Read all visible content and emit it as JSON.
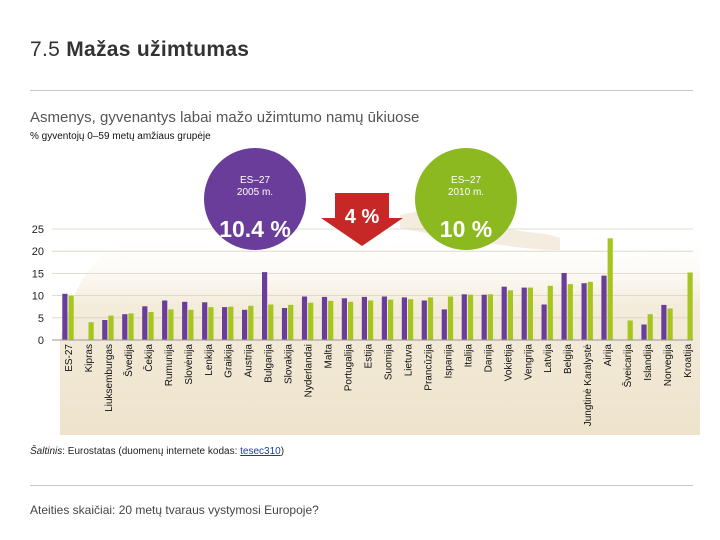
{
  "header": {
    "num": "7.5",
    "title": "Mažas užimtumas"
  },
  "subtitle": "Asmenys, gyvenantys labai mažo užimtumo namų ūkiuose",
  "unit": "% gyventojų 0–59 metų amžiaus grupėje",
  "callouts": {
    "left": {
      "label1": "ES–27",
      "label2": "2005 m.",
      "value": "10.4 %"
    },
    "mid": {
      "value": "4 %"
    },
    "right": {
      "label1": "ES–27",
      "label2": "2010 m.",
      "value": "10 %"
    }
  },
  "source": {
    "label": "Šaltinis",
    "text": ": Eurostatas (duomenų internete kodas: ",
    "code": "tesec310",
    "end": ")"
  },
  "footer": "Ateities skaičiai: 20 metų tvaraus vystymosi Europoje?",
  "colors": {
    "y2005": "#6a3d9a",
    "y2010": "#a6c51f",
    "circle_left": "#6a3d9a",
    "circle_right": "#8cb820",
    "arrow": "#c62828"
  },
  "chart_data": {
    "type": "bar",
    "ylim": [
      0,
      25
    ],
    "yticks": [
      0,
      5,
      10,
      15,
      20,
      25
    ],
    "categories": [
      "ES-27",
      "Kipras",
      "Liuksemburgas",
      "Švedija",
      "Čekija",
      "Rumunija",
      "Slovėnija",
      "Lenkija",
      "Graikija",
      "Austrija",
      "Bulgarija",
      "Slovakija",
      "Nyderlandai",
      "Malta",
      "Portugalija",
      "Estija",
      "Suomija",
      "Lietuva",
      "Prancūzija",
      "Ispanija",
      "Italija",
      "Danija",
      "Vokietija",
      "Vengrija",
      "Latvija",
      "Belgija",
      "Jungtinė Karalystė",
      "Airija",
      "Šveicarija",
      "Islandija",
      "Norvegija",
      "Kroatija"
    ],
    "series": [
      {
        "values": [
          10.4,
          null,
          4.5,
          5.8,
          7.6,
          8.9,
          8.6,
          8.5,
          7.4,
          6.8,
          15.3,
          7.2,
          9.8,
          9.7,
          9.4,
          9.7,
          9.8,
          9.6,
          8.9,
          6.9,
          10.3,
          10.2,
          12.0,
          11.8,
          8.0,
          15.1,
          12.8,
          14.5,
          null,
          3.5,
          7.9,
          null
        ]
      },
      {
        "values": [
          10.0,
          4.0,
          5.5,
          6.0,
          6.3,
          6.9,
          6.8,
          7.4,
          7.5,
          7.7,
          8.0,
          7.9,
          8.4,
          8.8,
          8.6,
          8.9,
          9.1,
          9.2,
          9.6,
          9.8,
          10.2,
          10.3,
          11.2,
          11.8,
          12.2,
          12.6,
          13.1,
          22.9,
          4.4,
          5.8,
          7.1,
          15.2
        ]
      }
    ]
  }
}
